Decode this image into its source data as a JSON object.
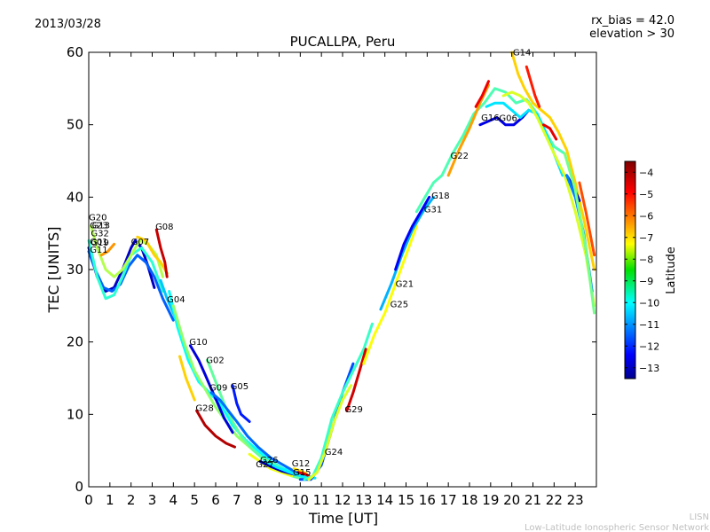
{
  "header": {
    "date": "2013/03/28",
    "rx_bias": "rx_bias = 42.0",
    "elevation": "elevation > 30"
  },
  "footer": {
    "credit_short": "LISN",
    "credit_long": "Low-Latitude Ionospheric Sensor Network"
  },
  "colorbar": {
    "label": "Latitude",
    "range": [
      -13.5,
      -3.5
    ],
    "ticks": [
      -13,
      -12,
      -11,
      -10,
      -9,
      -8,
      -7,
      -6,
      -5,
      -4
    ],
    "tick_labels": [
      "−13",
      "−12",
      "−11",
      "−10",
      "−9",
      "−8",
      "−7",
      "−6",
      "−5",
      "−4"
    ],
    "colormap": "jet"
  },
  "chart_data": {
    "type": "line",
    "title": "PUCALLPA, Peru",
    "xlabel": "Time [UT]",
    "ylabel": "TEC [UNITS]",
    "xlim": [
      0,
      24
    ],
    "ylim": [
      0,
      60
    ],
    "xticks": [
      0,
      1,
      2,
      3,
      4,
      5,
      6,
      7,
      8,
      9,
      10,
      11,
      12,
      13,
      14,
      15,
      16,
      17,
      18,
      19,
      20,
      21,
      22,
      23
    ],
    "yticks": [
      0,
      10,
      20,
      30,
      40,
      50,
      60
    ],
    "grid": false,
    "series": [
      {
        "name": "",
        "lat": -12.8,
        "x": [
          0.0,
          0.4,
          0.8,
          1.2,
          1.6,
          2.0,
          2.2,
          2.5,
          2.8,
          3.1
        ],
        "y": [
          33,
          29,
          27,
          27.5,
          30,
          33,
          34,
          33,
          30.5,
          27.5
        ]
      },
      {
        "name": "",
        "lat": -11.3,
        "x": [
          0.0,
          0.3,
          0.7,
          1.1,
          1.5,
          1.9,
          2.3,
          2.7,
          3.1,
          3.5,
          4.0
        ],
        "y": [
          32.5,
          30,
          27.5,
          27,
          28,
          30.5,
          32,
          31,
          29,
          26,
          23
        ]
      },
      {
        "name": "",
        "lat": -9.3,
        "x": [
          0.0,
          0.4,
          0.8,
          1.2,
          1.6,
          2.0,
          2.5,
          3.0,
          3.5
        ],
        "y": [
          34,
          29,
          26,
          26.5,
          29,
          32,
          33,
          31,
          27
        ]
      },
      {
        "name": "",
        "lat": -8.0,
        "x": [
          0.1,
          0.4,
          0.8,
          1.2,
          1.6,
          2.0,
          2.4,
          2.8,
          3.2,
          3.5
        ],
        "y": [
          36,
          33,
          30,
          29,
          30,
          32,
          34,
          33.5,
          32,
          29
        ]
      },
      {
        "name": "",
        "lat": -6.2,
        "x": [
          0.6,
          0.9,
          1.2
        ],
        "y": [
          32,
          32.5,
          33.5
        ]
      },
      {
        "name": "",
        "lat": -6.8,
        "x": [
          2.3,
          2.7,
          3.1,
          3.4,
          3.7
        ],
        "y": [
          34.5,
          34,
          32,
          31,
          29.5
        ]
      },
      {
        "name": "",
        "lat": -4.2,
        "x": [
          3.2,
          3.4,
          3.6,
          3.7
        ],
        "y": [
          35.5,
          33,
          31,
          29
        ]
      },
      {
        "name": "",
        "lat": -10.3,
        "x": [
          3.4,
          3.7,
          4.0,
          4.2
        ],
        "y": [
          28.5,
          26,
          24,
          22.5
        ]
      },
      {
        "name": "",
        "lat": -9.7,
        "x": [
          3.8,
          4.2,
          4.7,
          5.2,
          5.7,
          6.2,
          6.8,
          7.4,
          8.0,
          8.6,
          9.2,
          9.8,
          10.4
        ],
        "y": [
          27,
          22,
          17.5,
          14.5,
          13,
          11.5,
          8.5,
          6.5,
          5,
          3.5,
          2.5,
          2,
          1.5
        ]
      },
      {
        "name": "",
        "lat": -8.3,
        "x": [
          4.0,
          4.5,
          5.0,
          5.5,
          6.0,
          6.5,
          7.0,
          7.6,
          8.2,
          8.8,
          9.4,
          10.0
        ],
        "y": [
          25,
          20,
          16,
          13.5,
          11,
          9,
          7,
          5.5,
          4,
          3,
          2,
          1.5
        ]
      },
      {
        "name": "",
        "lat": -6.8,
        "x": [
          4.3,
          4.6,
          5.0
        ],
        "y": [
          18,
          15,
          12
        ]
      },
      {
        "name": "",
        "lat": -12.6,
        "x": [
          4.8,
          5.2,
          5.5,
          5.8,
          6.1,
          6.4,
          6.8
        ],
        "y": [
          19.5,
          17.5,
          15.5,
          13.5,
          11.5,
          9.5,
          7.5
        ]
      },
      {
        "name": "",
        "lat": -8.8,
        "x": [
          5.6,
          6.0,
          6.4,
          6.8,
          7.2,
          7.8,
          8.4,
          9.0,
          9.6,
          10.2
        ],
        "y": [
          17.5,
          14.5,
          11.5,
          9,
          7,
          5,
          3.5,
          2.5,
          1.5,
          1
        ]
      },
      {
        "name": "",
        "lat": -11.2,
        "x": [
          5.8,
          6.2,
          6.6,
          7.0,
          7.5,
          8.0,
          8.6,
          9.2,
          9.8,
          10.4
        ],
        "y": [
          13,
          12,
          10.5,
          9,
          7,
          5.5,
          4,
          3,
          2,
          1.5
        ]
      },
      {
        "name": "",
        "lat": -12.0,
        "x": [
          6.8,
          7.0,
          7.2,
          7.6
        ],
        "y": [
          14,
          11.5,
          10,
          9
        ]
      },
      {
        "name": "",
        "lat": -4.0,
        "x": [
          5.1,
          5.5,
          6.0,
          6.5,
          6.9
        ],
        "y": [
          10.5,
          8.5,
          7,
          6,
          5.5
        ]
      },
      {
        "name": "",
        "lat": -7.4,
        "x": [
          7.6,
          8.1,
          8.6,
          9.1,
          9.6
        ],
        "y": [
          4.5,
          3.5,
          2.5,
          2,
          1.5
        ]
      },
      {
        "name": "",
        "lat": -12.9,
        "x": [
          8.1,
          8.6,
          9.1,
          9.6,
          10.1
        ],
        "y": [
          3.5,
          2.8,
          2.2,
          1.8,
          1.5
        ]
      },
      {
        "name": "",
        "lat": -9.9,
        "x": [
          8.3,
          8.9,
          9.5,
          10.1,
          10.7
        ],
        "y": [
          3.6,
          2.7,
          2,
          1.4,
          1.2
        ]
      },
      {
        "name": "",
        "lat": -7.0,
        "x": [
          9.7,
          10.0,
          10.3
        ],
        "y": [
          2.5,
          2.2,
          1.8
        ]
      },
      {
        "name": "",
        "lat": -4.5,
        "x": [
          9.9,
          10.2,
          10.4
        ],
        "y": [
          2,
          1.8,
          1.5
        ]
      },
      {
        "name": "",
        "lat": -11.5,
        "x": [
          10.0,
          10.5,
          11.0,
          11.5,
          12.0,
          12.5
        ],
        "y": [
          1,
          1,
          3,
          8,
          13,
          17
        ]
      },
      {
        "name": "",
        "lat": -9.2,
        "x": [
          10.2,
          10.6,
          11.0,
          11.5,
          12.0,
          12.5,
          13.0,
          13.4
        ],
        "y": [
          1,
          1.5,
          4,
          9.5,
          13,
          16,
          19,
          22.5
        ]
      },
      {
        "name": "",
        "lat": -7.6,
        "x": [
          10.4,
          10.8,
          11.2,
          11.6,
          12.0,
          12.4
        ],
        "y": [
          1,
          2,
          5,
          9,
          12,
          14
        ]
      },
      {
        "name": "",
        "lat": -4.3,
        "x": [
          12.2,
          12.5,
          12.8,
          13.1
        ],
        "y": [
          10.5,
          13,
          16,
          19
        ]
      },
      {
        "name": "",
        "lat": -7.3,
        "x": [
          13.0,
          13.5,
          14.0,
          14.5,
          15.0,
          15.5
        ],
        "y": [
          17,
          21,
          24,
          28,
          32,
          36
        ]
      },
      {
        "name": "",
        "lat": -10.5,
        "x": [
          13.8,
          14.3,
          14.8,
          15.3,
          15.8,
          16.3
        ],
        "y": [
          24.5,
          28,
          32,
          35.5,
          38,
          40
        ]
      },
      {
        "name": "",
        "lat": -12.3,
        "x": [
          14.5,
          14.9,
          15.3,
          15.7,
          16.1
        ],
        "y": [
          30,
          33.5,
          36,
          38,
          40
        ]
      },
      {
        "name": "",
        "lat": -9.0,
        "x": [
          15.5,
          15.9,
          16.3,
          16.7,
          17.2,
          17.7,
          18.2,
          18.7,
          19.2,
          19.7,
          20.2,
          20.7,
          21.2,
          21.6,
          22.0,
          22.5
        ],
        "y": [
          38,
          40,
          42,
          43,
          46,
          48.5,
          51.5,
          53,
          55,
          54.5,
          53,
          53.5,
          51.5,
          49,
          47,
          46
        ]
      },
      {
        "name": "",
        "lat": -6.3,
        "x": [
          17.0,
          17.5,
          18.0,
          18.5,
          18.9
        ],
        "y": [
          43,
          46.5,
          49.5,
          53,
          55.5
        ]
      },
      {
        "name": "",
        "lat": -4.6,
        "x": [
          18.3,
          18.6,
          18.9
        ],
        "y": [
          52.5,
          54,
          56
        ]
      },
      {
        "name": "",
        "lat": -12.5,
        "x": [
          18.5,
          18.9,
          19.3,
          19.7,
          20.1,
          20.5,
          20.8
        ],
        "y": [
          50,
          50.5,
          51,
          50,
          50,
          51,
          52
        ]
      },
      {
        "name": "",
        "lat": -10.0,
        "x": [
          18.8,
          19.2,
          19.6,
          20.0,
          20.4,
          20.8,
          21.2,
          21.6,
          22.0,
          22.4
        ],
        "y": [
          52.5,
          53,
          53,
          52,
          51,
          52,
          51.5,
          49,
          46,
          43
        ]
      },
      {
        "name": "",
        "lat": -7.6,
        "x": [
          19.6,
          20.0,
          20.4,
          20.8,
          21.2,
          21.6,
          22.0,
          22.5,
          23.0,
          23.5,
          23.9
        ],
        "y": [
          54,
          54.5,
          54,
          53,
          51,
          48.5,
          46,
          43,
          38,
          32,
          25
        ]
      },
      {
        "name": "",
        "lat": -6.8,
        "x": [
          20.0,
          20.3,
          20.6,
          21.0,
          21.4,
          21.8,
          22.2,
          22.6,
          23.0,
          23.4,
          23.9
        ],
        "y": [
          60,
          57,
          55,
          53,
          52,
          51,
          49,
          46.5,
          42,
          37,
          30
        ]
      },
      {
        "name": "",
        "lat": -5.0,
        "x": [
          20.7,
          20.9,
          21.1,
          21.3
        ],
        "y": [
          58,
          56,
          54,
          52.5
        ]
      },
      {
        "name": "",
        "lat": -4.5,
        "x": [
          21.5,
          21.8,
          22.1
        ],
        "y": [
          50,
          49.5,
          48
        ]
      },
      {
        "name": "",
        "lat": -12.7,
        "x": [
          22.6,
          22.9,
          23.2
        ],
        "y": [
          43,
          41.5,
          39.5
        ]
      },
      {
        "name": "",
        "lat": -11.0,
        "x": [
          22.6,
          23.0,
          23.4,
          23.8
        ],
        "y": [
          43,
          40,
          35,
          27
        ]
      },
      {
        "name": "",
        "lat": -8.6,
        "x": [
          22.5,
          23.0,
          23.5,
          23.9
        ],
        "y": [
          46,
          41,
          33,
          24
        ]
      },
      {
        "name": "",
        "lat": -5.5,
        "x": [
          23.2,
          23.5,
          23.9
        ],
        "y": [
          42,
          38,
          32
        ]
      }
    ],
    "annotations": [
      {
        "text": "G20",
        "x": 0.0,
        "y": 36.8
      },
      {
        "text": "G23",
        "x": 0.05,
        "y": 35.7
      },
      {
        "text": "G13",
        "x": 0.15,
        "y": 35.7
      },
      {
        "text": "G32",
        "x": 0.1,
        "y": 34.6
      },
      {
        "text": "G01",
        "x": 0.05,
        "y": 33.4
      },
      {
        "text": "G19",
        "x": 0.1,
        "y": 33.3
      },
      {
        "text": "G11",
        "x": 0.05,
        "y": 32.3
      },
      {
        "text": "G07",
        "x": 2.0,
        "y": 33.4
      },
      {
        "text": "G08",
        "x": 3.15,
        "y": 35.5
      },
      {
        "text": "G04",
        "x": 3.7,
        "y": 25.5
      },
      {
        "text": "G10",
        "x": 4.75,
        "y": 19.6
      },
      {
        "text": "G02",
        "x": 5.55,
        "y": 17.1
      },
      {
        "text": "G09",
        "x": 5.7,
        "y": 13.3
      },
      {
        "text": "G05",
        "x": 6.7,
        "y": 13.5
      },
      {
        "text": "G28",
        "x": 5.05,
        "y": 10.5
      },
      {
        "text": "G26",
        "x": 8.1,
        "y": 3.3
      },
      {
        "text": "G27",
        "x": 7.9,
        "y": 2.7
      },
      {
        "text": "G12",
        "x": 9.6,
        "y": 2.8
      },
      {
        "text": "G15",
        "x": 9.65,
        "y": 1.6
      },
      {
        "text": "G24",
        "x": 11.15,
        "y": 4.4
      },
      {
        "text": "G29",
        "x": 12.1,
        "y": 10.3
      },
      {
        "text": "G25",
        "x": 14.25,
        "y": 24.8
      },
      {
        "text": "G21",
        "x": 14.5,
        "y": 27.6
      },
      {
        "text": "G31",
        "x": 15.85,
        "y": 37.9
      },
      {
        "text": "G18",
        "x": 16.2,
        "y": 39.8
      },
      {
        "text": "G22",
        "x": 17.1,
        "y": 45.3
      },
      {
        "text": "G16",
        "x": 18.55,
        "y": 50.6
      },
      {
        "text": "G06",
        "x": 19.4,
        "y": 50.5
      },
      {
        "text": "G14",
        "x": 20.05,
        "y": 59.6
      }
    ]
  }
}
